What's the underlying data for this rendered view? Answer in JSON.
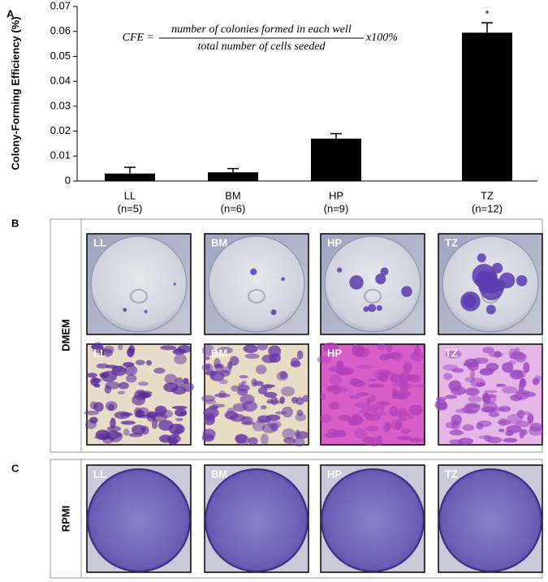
{
  "chart_data": {
    "type": "bar",
    "panel_label": "A",
    "y_label": "Colony-Forming Efficiency (%)",
    "categories": [
      "LL",
      "BM",
      "HP",
      "TZ"
    ],
    "sample_sizes": [
      "(n=5)",
      "(n=6)",
      "(n=9)",
      "(n=12)"
    ],
    "values": [
      0.003,
      0.0035,
      0.017,
      0.0595
    ],
    "errors": [
      0.0025,
      0.0015,
      0.002,
      0.004
    ],
    "significance_labels": [
      null,
      null,
      null,
      "*"
    ],
    "color": "#000000",
    "ylim": [
      0,
      0.07
    ],
    "yticks": [
      0,
      0.01,
      0.02,
      0.03,
      0.04,
      0.05,
      0.06,
      0.07
    ],
    "formula": {
      "lhs": "CFE =",
      "numerator": "number of colonies formed in each well",
      "denominator": "total number of cells seeded",
      "suffix": "x100%"
    }
  },
  "panel_b": {
    "label": "B",
    "row_label": "DMEM",
    "tiles": [
      "LL",
      "BM",
      "HP",
      "TZ"
    ]
  },
  "panel_c": {
    "label": "C",
    "row_label": "RPMI",
    "tiles": [
      "LL",
      "BM",
      "HP",
      "TZ"
    ]
  }
}
